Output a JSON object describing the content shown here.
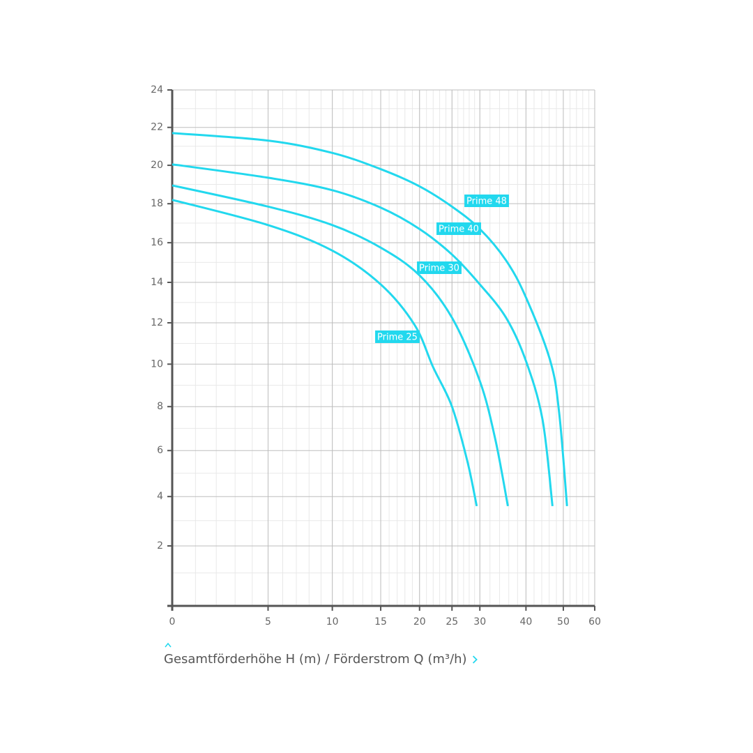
{
  "chart_data": {
    "type": "line",
    "xlabel": "Gesamtförderhöhe H (m) / Förderstrom Q (m³/h)",
    "xlim": [
      0,
      60
    ],
    "xticks": [
      0,
      5,
      10,
      15,
      20,
      25,
      30,
      40,
      50,
      60
    ],
    "ylim": [
      0,
      24
    ],
    "yticks": [
      2,
      4,
      6,
      8,
      10,
      12,
      14,
      16,
      18,
      20,
      22,
      24
    ],
    "grid": true,
    "series": [
      {
        "name": "Prime 48",
        "color": "#22d8ee",
        "x": [
          0,
          5,
          10,
          15,
          20,
          25,
          30,
          35.4,
          40,
          46.3,
          48.8,
          51.1
        ],
        "values": [
          21.7,
          21.3,
          20.65,
          19.8,
          18.9,
          17.85,
          16.7,
          15.1,
          13.25,
          10.15,
          7.7,
          3.6
        ]
      },
      {
        "name": "Prime 40",
        "color": "#22d8ee",
        "x": [
          0,
          5,
          10,
          15,
          20,
          25,
          30,
          35.4,
          40,
          44.2,
          46.9
        ],
        "values": [
          20.05,
          19.35,
          18.7,
          17.8,
          16.7,
          15.4,
          13.9,
          12.25,
          10.15,
          7.4,
          3.6
        ]
      },
      {
        "name": "Prime 30",
        "color": "#22d8ee",
        "x": [
          0,
          5,
          10,
          15,
          20,
          25,
          30,
          33.1,
          35.8
        ],
        "values": [
          18.95,
          17.85,
          16.9,
          15.75,
          14.35,
          12.25,
          9.2,
          6.5,
          3.6
        ]
      },
      {
        "name": "Prime 25",
        "color": "#22d8ee",
        "x": [
          0,
          5,
          10,
          15,
          19.3,
          22.0,
          25,
          27.7,
          29.4
        ],
        "values": [
          18.2,
          16.9,
          15.6,
          13.9,
          11.9,
          9.85,
          8,
          5.5,
          3.6
        ]
      }
    ]
  }
}
